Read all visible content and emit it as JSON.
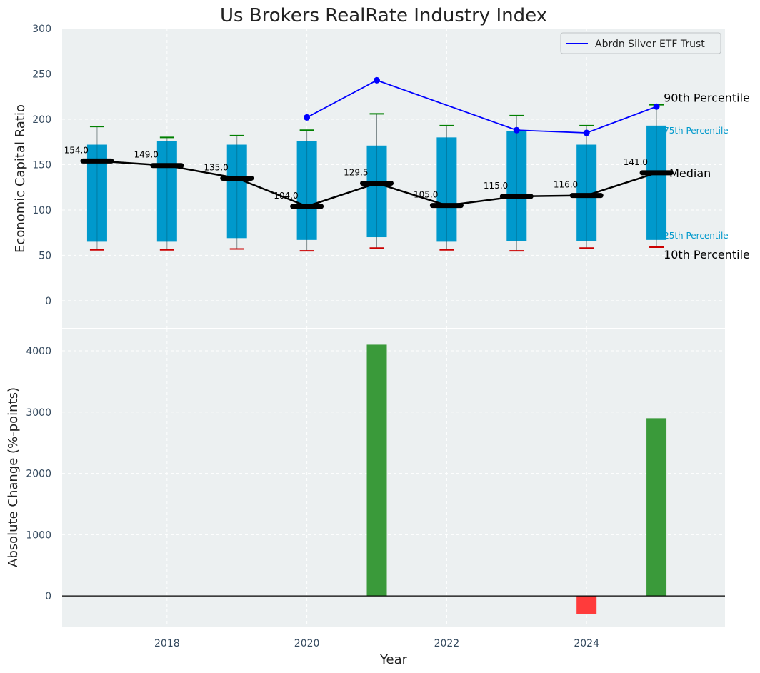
{
  "chart_data": [
    {
      "type": "box",
      "title": "Us Brokers RealRate Industry Index",
      "xlabel": "",
      "ylabel": "Economic Capital Ratio",
      "ylim": [
        -30,
        300
      ],
      "yticks": [
        0,
        50,
        100,
        150,
        200,
        250,
        300
      ],
      "x": [
        2017,
        2018,
        2019,
        2020,
        2021,
        2022,
        2023,
        2024,
        2025
      ],
      "boxes": [
        {
          "x": 2017,
          "p10": 56,
          "p25": 65,
          "median": 154.0,
          "p75": 172,
          "p90": 192,
          "label": "154.0"
        },
        {
          "x": 2018,
          "p10": 56,
          "p25": 65,
          "median": 149.0,
          "p75": 176,
          "p90": 180,
          "label": "149.0"
        },
        {
          "x": 2019,
          "p10": 57,
          "p25": 69,
          "median": 135.0,
          "p75": 172,
          "p90": 182,
          "label": "135.0"
        },
        {
          "x": 2020,
          "p10": 55,
          "p25": 67,
          "median": 104.0,
          "p75": 176,
          "p90": 188,
          "label": "104.0"
        },
        {
          "x": 2021,
          "p10": 58,
          "p25": 70,
          "median": 129.5,
          "p75": 171,
          "p90": 206,
          "label": "129.5"
        },
        {
          "x": 2022,
          "p10": 56,
          "p25": 65,
          "median": 105.0,
          "p75": 180,
          "p90": 193,
          "label": "105.0"
        },
        {
          "x": 2023,
          "p10": 55,
          "p25": 66,
          "median": 115.0,
          "p75": 187,
          "p90": 204,
          "label": "115.0"
        },
        {
          "x": 2024,
          "p10": 58,
          "p25": 66,
          "median": 116.0,
          "p75": 172,
          "p90": 193,
          "label": "116.0"
        },
        {
          "x": 2025,
          "p10": 59,
          "p25": 67,
          "median": 141.0,
          "p75": 193,
          "p90": 216,
          "label": "141.0"
        }
      ],
      "series": [
        {
          "name": "Abrdn Silver ETF Trust",
          "color": "#0000ff",
          "x": [
            2020,
            2021,
            2023,
            2024,
            2025
          ],
          "values": [
            202,
            243,
            188,
            185,
            214
          ]
        }
      ],
      "annotations": {
        "p90": "90th Percentile",
        "p75": "75th Percentile",
        "median": "Median",
        "p25": "25th Percentile",
        "p10": "10th Percentile"
      },
      "legend": "top-right",
      "grid": true
    },
    {
      "type": "bar",
      "title": "",
      "xlabel": "Year",
      "ylabel": "Absolute Change (%-points)",
      "ylim": [
        -500,
        4350
      ],
      "yticks": [
        0,
        1000,
        2000,
        3000,
        4000
      ],
      "x": [
        2021,
        2024,
        2025
      ],
      "values": [
        4100,
        -290,
        2900
      ],
      "xticks": [
        2018,
        2020,
        2022,
        2024
      ],
      "grid": true
    }
  ],
  "colors": {
    "background": "#ecf0f1",
    "box": "#0099cc",
    "median": "#000000",
    "whisker_top": "#008000",
    "whisker_bottom": "#cc0000",
    "positive": "#3a9a3a",
    "negative": "#ff3b3b",
    "percentile_small": "#0099cc"
  }
}
